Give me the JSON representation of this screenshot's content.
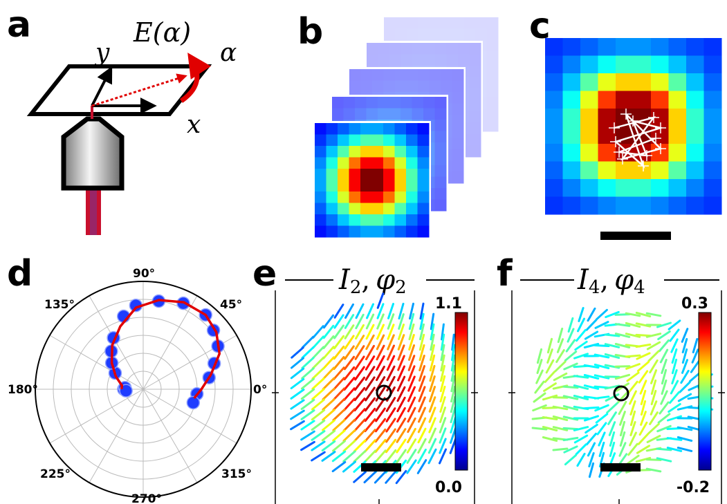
{
  "panels": {
    "a": {
      "letter": "a",
      "y_axis": "y",
      "x_axis": "x",
      "field": "E(α)",
      "angle": "α"
    },
    "b": {
      "letter": "b"
    },
    "c": {
      "letter": "c"
    },
    "d": {
      "letter": "d",
      "angle_labels": [
        "90°",
        "45°",
        "135°",
        "180°",
        "0°",
        "225°",
        "315°",
        "270°"
      ]
    },
    "e": {
      "letter": "e",
      "title_main": "I",
      "title_sub": "2",
      "title_sep": ",",
      "title_phi": "φ",
      "title_phi_sub": "2",
      "cbar_max": "1.1",
      "cbar_min": "0.0"
    },
    "f": {
      "letter": "f",
      "title_main": "I",
      "title_sub": "4",
      "title_sep": ",",
      "title_phi": "φ",
      "title_phi_sub": "4",
      "cbar_max": "0.3",
      "cbar_min": "-0.2"
    }
  },
  "colors": {
    "jet_low": "#00008f",
    "jet_high": "#800000",
    "fit_line": "#e00000",
    "marker_fill": "#1e3cff",
    "white_marks": "#ffffff"
  },
  "chart_data": [
    {
      "type": "heatmap",
      "panel": "c",
      "rows": 10,
      "cols": 10,
      "values": [
        [
          0.1,
          0.12,
          0.15,
          0.18,
          0.2,
          0.2,
          0.18,
          0.15,
          0.12,
          0.1
        ],
        [
          0.12,
          0.18,
          0.25,
          0.32,
          0.36,
          0.36,
          0.32,
          0.25,
          0.18,
          0.12
        ],
        [
          0.15,
          0.25,
          0.4,
          0.55,
          0.62,
          0.62,
          0.55,
          0.4,
          0.25,
          0.15
        ],
        [
          0.18,
          0.32,
          0.55,
          0.78,
          0.92,
          0.92,
          0.78,
          0.55,
          0.32,
          0.18
        ],
        [
          0.2,
          0.36,
          0.62,
          0.92,
          1.0,
          1.0,
          0.92,
          0.62,
          0.36,
          0.2
        ],
        [
          0.2,
          0.36,
          0.62,
          0.92,
          1.0,
          1.0,
          0.92,
          0.62,
          0.36,
          0.2
        ],
        [
          0.18,
          0.32,
          0.55,
          0.78,
          0.92,
          0.92,
          0.78,
          0.55,
          0.32,
          0.18
        ],
        [
          0.15,
          0.25,
          0.4,
          0.55,
          0.62,
          0.62,
          0.55,
          0.4,
          0.25,
          0.15
        ],
        [
          0.12,
          0.18,
          0.25,
          0.32,
          0.36,
          0.36,
          0.32,
          0.25,
          0.18,
          0.12
        ],
        [
          0.1,
          0.12,
          0.15,
          0.18,
          0.2,
          0.2,
          0.18,
          0.15,
          0.12,
          0.1
        ]
      ]
    },
    {
      "type": "scatter",
      "panel": "d",
      "projection": "polar",
      "angle_unit": "degrees",
      "points": [
        [
          180,
          0.18
        ],
        [
          175,
          0.17
        ],
        [
          185,
          0.16
        ],
        [
          150,
          0.3
        ],
        [
          140,
          0.38
        ],
        [
          130,
          0.46
        ],
        [
          120,
          0.55
        ],
        [
          105,
          0.7
        ],
        [
          95,
          0.78
        ],
        [
          80,
          0.83
        ],
        [
          65,
          0.88
        ],
        [
          50,
          0.9
        ],
        [
          40,
          0.85
        ],
        [
          30,
          0.8
        ],
        [
          20,
          0.7
        ],
        [
          10,
          0.62
        ],
        [
          355,
          0.5
        ],
        [
          345,
          0.48
        ]
      ],
      "fit": [
        [
          180,
          0.2
        ],
        [
          170,
          0.2
        ],
        [
          155,
          0.28
        ],
        [
          140,
          0.38
        ],
        [
          125,
          0.5
        ],
        [
          110,
          0.62
        ],
        [
          95,
          0.76
        ],
        [
          80,
          0.84
        ],
        [
          65,
          0.89
        ],
        [
          50,
          0.9
        ],
        [
          38,
          0.86
        ],
        [
          25,
          0.78
        ],
        [
          12,
          0.64
        ],
        [
          0,
          0.54
        ],
        [
          350,
          0.48
        ]
      ]
    },
    {
      "type": "heatmap",
      "panel": "e",
      "cbar_range": [
        0.0,
        1.1
      ],
      "orientation": "director field of short segments"
    },
    {
      "type": "heatmap",
      "panel": "f",
      "cbar_range": [
        -0.2,
        0.3
      ],
      "orientation": "director field of short segments"
    }
  ]
}
